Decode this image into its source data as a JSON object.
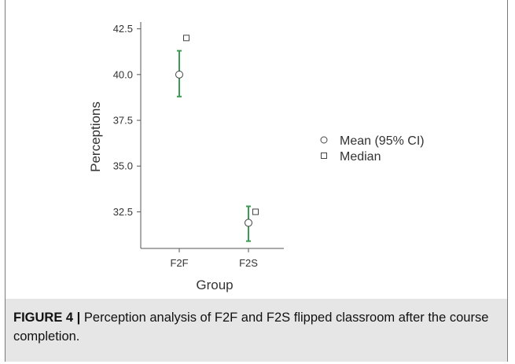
{
  "chart_data": {
    "type": "scatter",
    "categories": [
      "F2F",
      "F2S"
    ],
    "xlabel": "Group",
    "ylabel": "Perceptions",
    "ylim": [
      30.5,
      42.7
    ],
    "yticks": [
      32.5,
      35.0,
      37.5,
      40.0,
      42.5
    ],
    "ytick_labels": [
      "32.5",
      "35.0",
      "37.5",
      "40.0",
      "42.5"
    ],
    "grid": false,
    "legend_position": "right",
    "series": [
      {
        "name": "Mean (95% CI)",
        "marker": "circle",
        "values": [
          40.0,
          31.9
        ],
        "ci_lower": [
          38.8,
          30.9
        ],
        "ci_upper": [
          41.3,
          32.8
        ]
      },
      {
        "name": "Median",
        "marker": "square",
        "values": [
          42.0,
          32.5
        ]
      }
    ],
    "colors": {
      "error_bar": "#3a9c52",
      "axis": "#555555",
      "marker_edge": "#444444"
    }
  },
  "caption": {
    "label": "FIGURE 4 |",
    "text": " Perception analysis of F2F and F2S flipped classroom after the course completion."
  }
}
